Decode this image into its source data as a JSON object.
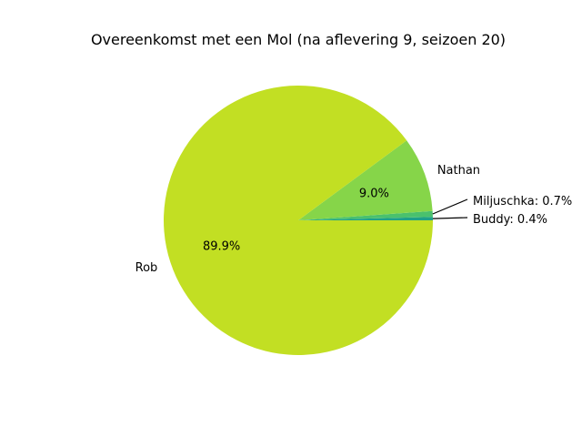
{
  "chart_data": {
    "type": "pie",
    "title": "Overeenkomst met een Mol (na aflevering 9, seizoen 20)",
    "slices": [
      {
        "label": "Buddy",
        "value": 0.4,
        "pct_label": "",
        "outer_label": "Buddy: 0.4%",
        "color": "#1fa187",
        "callout": true
      },
      {
        "label": "Miljuschka",
        "value": 0.7,
        "pct_label": "",
        "outer_label": "Miljuschka: 0.7%",
        "color": "#4ac16d",
        "callout": true
      },
      {
        "label": "Nathan",
        "value": 9.0,
        "pct_label": "9.0%",
        "outer_label": "Nathan",
        "color": "#86d549",
        "callout": false
      },
      {
        "label": "Rob",
        "value": 89.9,
        "pct_label": "89.9%",
        "outer_label": "Rob",
        "color": "#c2df23",
        "callout": false
      }
    ],
    "start_angle_deg": 0,
    "direction": "counterclockwise"
  }
}
